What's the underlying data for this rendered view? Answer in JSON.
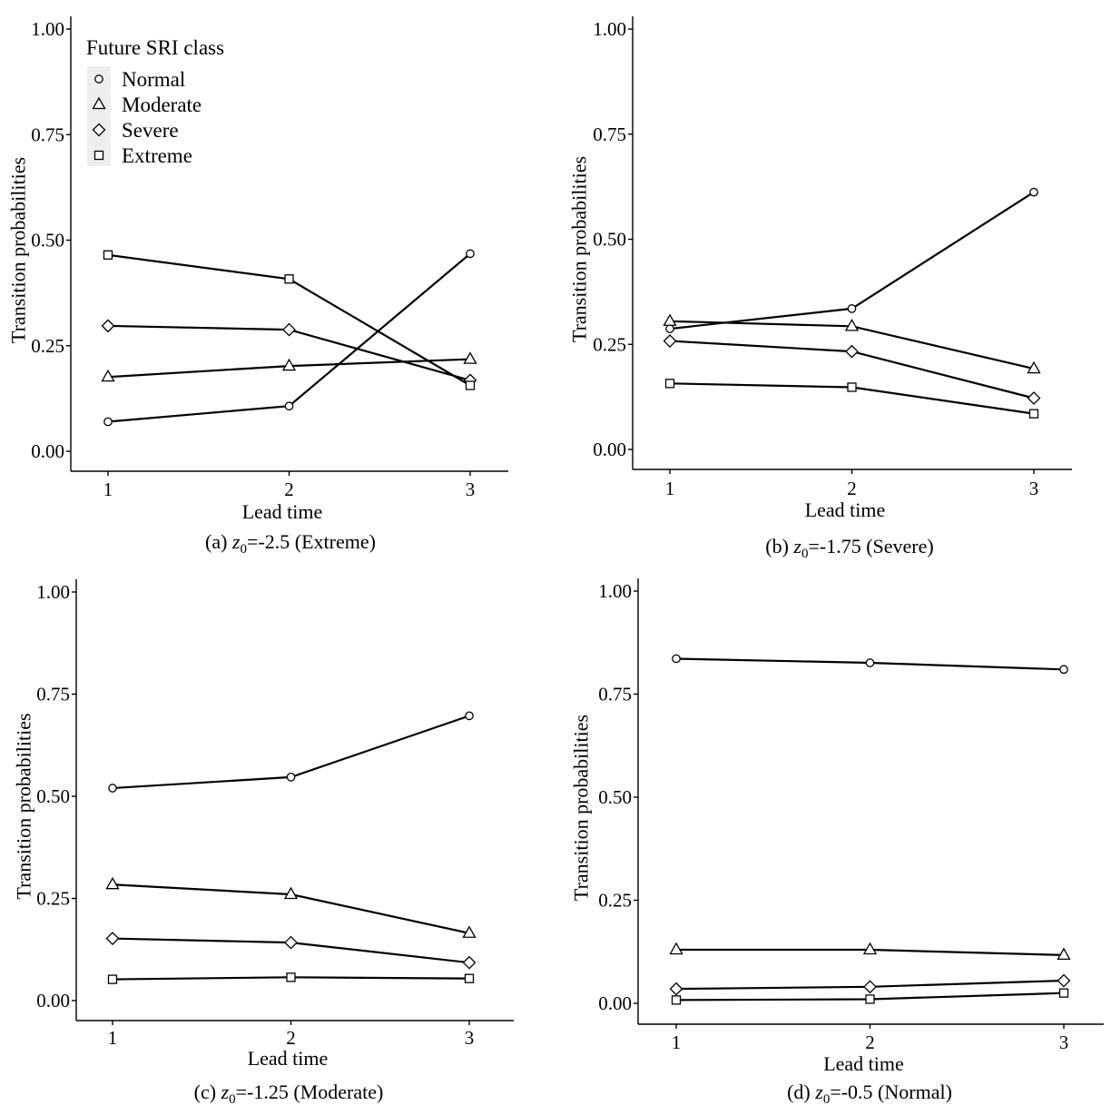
{
  "figure": {
    "y_axis_label": "Transition probabilities",
    "x_axis_label": "Lead time"
  },
  "legend": {
    "title": "Future SRI class",
    "items": [
      {
        "label": "Normal",
        "shape": "circle-icon"
      },
      {
        "label": "Moderate",
        "shape": "triangle-icon"
      },
      {
        "label": "Severe",
        "shape": "diamond-icon"
      },
      {
        "label": "Extreme",
        "shape": "square-icon"
      }
    ]
  },
  "chart_data": [
    {
      "type": "line",
      "caption": {
        "prefix": "(a) ",
        "var": "z",
        "sub": "0",
        "rest": "=-2.5 (Extreme)"
      },
      "xlabel": "Lead time",
      "ylabel": "Transition probabilities",
      "x": [
        1,
        2,
        3
      ],
      "ylim": [
        0,
        1.0
      ],
      "yticks": [
        "0.00",
        "0.25",
        "0.50",
        "0.75",
        "1.00"
      ],
      "series": [
        {
          "name": "Normal",
          "values": [
            0.07,
            0.107,
            0.468
          ]
        },
        {
          "name": "Moderate",
          "values": [
            0.176,
            0.202,
            0.218
          ]
        },
        {
          "name": "Severe",
          "values": [
            0.297,
            0.288,
            0.168
          ]
        },
        {
          "name": "Extreme",
          "values": [
            0.465,
            0.408,
            0.156
          ]
        }
      ]
    },
    {
      "type": "line",
      "caption": {
        "prefix": "(b) ",
        "var": "z",
        "sub": "0",
        "rest": "=-1.75 (Severe)"
      },
      "xlabel": "Lead time",
      "ylabel": "Transition probabilities",
      "x": [
        1,
        2,
        3
      ],
      "ylim": [
        0,
        1.0
      ],
      "yticks": [
        "0.00",
        "0.25",
        "0.50",
        "0.75",
        "1.00"
      ],
      "series": [
        {
          "name": "Normal",
          "values": [
            0.287,
            0.335,
            0.612
          ]
        },
        {
          "name": "Moderate",
          "values": [
            0.305,
            0.293,
            0.192
          ]
        },
        {
          "name": "Severe",
          "values": [
            0.258,
            0.233,
            0.122
          ]
        },
        {
          "name": "Extreme",
          "values": [
            0.157,
            0.148,
            0.085
          ]
        }
      ]
    },
    {
      "type": "line",
      "caption": {
        "prefix": "(c) ",
        "var": "z",
        "sub": "0",
        "rest": "=-1.25 (Moderate)"
      },
      "xlabel": "Lead time",
      "ylabel": "Transition probabilities",
      "x": [
        1,
        2,
        3
      ],
      "ylim": [
        0,
        1.0
      ],
      "yticks": [
        "0.00",
        "0.25",
        "0.50",
        "0.75",
        "1.00"
      ],
      "series": [
        {
          "name": "Normal",
          "values": [
            0.52,
            0.547,
            0.697
          ]
        },
        {
          "name": "Moderate",
          "values": [
            0.284,
            0.26,
            0.165
          ]
        },
        {
          "name": "Severe",
          "values": [
            0.152,
            0.142,
            0.093
          ]
        },
        {
          "name": "Extreme",
          "values": [
            0.052,
            0.057,
            0.054
          ]
        }
      ]
    },
    {
      "type": "line",
      "caption": {
        "prefix": "(d) ",
        "var": "z",
        "sub": "0",
        "rest": "=-0.5 (Normal)"
      },
      "xlabel": "Lead time",
      "ylabel": "Transition probabilities",
      "x": [
        1,
        2,
        3
      ],
      "ylim": [
        0,
        1.0
      ],
      "yticks": [
        "0.00",
        "0.25",
        "0.50",
        "0.75",
        "1.00"
      ],
      "series": [
        {
          "name": "Normal",
          "values": [
            0.836,
            0.826,
            0.81
          ]
        },
        {
          "name": "Moderate",
          "values": [
            0.13,
            0.13,
            0.117
          ]
        },
        {
          "name": "Severe",
          "values": [
            0.035,
            0.04,
            0.055
          ]
        },
        {
          "name": "Extreme",
          "values": [
            0.008,
            0.01,
            0.025
          ]
        }
      ]
    }
  ]
}
